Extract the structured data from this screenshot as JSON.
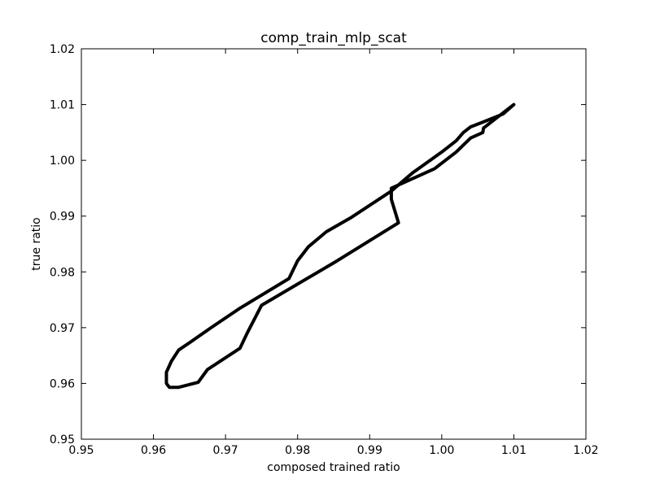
{
  "chart_data": {
    "type": "line",
    "title": "comp_train_mlp_scat",
    "xlabel": "composed trained ratio",
    "ylabel": "true ratio",
    "xlim": [
      0.95,
      1.02
    ],
    "ylim": [
      0.95,
      1.02
    ],
    "x_ticks": [
      "0.95",
      "0.96",
      "0.97",
      "0.98",
      "0.99",
      "1.00",
      "1.01",
      "1.02"
    ],
    "y_ticks": [
      "0.95",
      "0.96",
      "0.97",
      "0.98",
      "0.99",
      "1.00",
      "1.01",
      "1.02"
    ],
    "grid": false,
    "line_color": "#000000",
    "series": [
      {
        "x": [
          1.01,
          1.0085,
          1.006,
          1.004,
          1.003,
          1.002,
          1.0,
          0.996,
          0.993,
          0.9875,
          0.984,
          0.9815,
          0.98,
          0.9788,
          0.972,
          0.968,
          0.965,
          0.9635,
          0.9625,
          0.9618,
          0.9618,
          0.9622,
          0.9635,
          0.9662,
          0.9675,
          0.972,
          0.973,
          0.975,
          0.9855,
          0.994,
          0.993,
          0.993,
          0.999,
          1.002,
          1.004,
          1.0057,
          1.0058,
          1.0075,
          1.01
        ],
        "y": [
          1.01,
          1.0083,
          1.007,
          1.006,
          1.005,
          1.0035,
          1.0015,
          0.9978,
          0.9945,
          0.9898,
          0.9872,
          0.9845,
          0.982,
          0.9788,
          0.9735,
          0.97,
          0.9673,
          0.966,
          0.964,
          0.962,
          0.96,
          0.9593,
          0.9593,
          0.9602,
          0.9625,
          0.9663,
          0.969,
          0.974,
          0.982,
          0.9888,
          0.993,
          0.995,
          0.9985,
          1.0015,
          1.004,
          1.005,
          1.0058,
          1.0075,
          1.01
        ]
      }
    ]
  }
}
